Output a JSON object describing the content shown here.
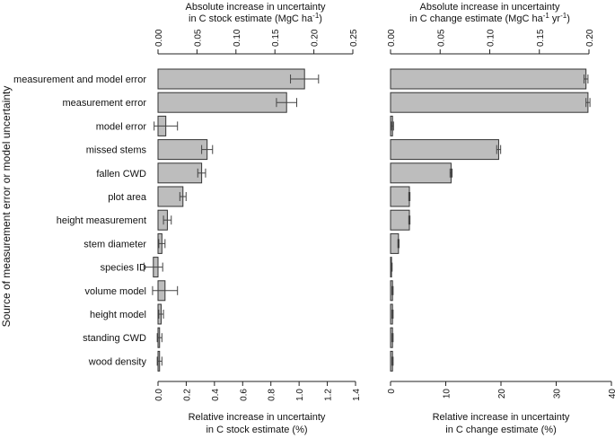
{
  "chart_data": {
    "type": "bar",
    "orientation": "horizontal",
    "ylabel": "Source of measurement error or model uncertainty",
    "categories": [
      "measurement and model error",
      "measurement error",
      "model error",
      "missed stems",
      "fallen CWD",
      "plot area",
      "height measurement",
      "stem diameter",
      "species ID",
      "volume model",
      "height model",
      "standing CWD",
      "wood density"
    ],
    "panels": [
      {
        "id": "stock",
        "top_title": [
          "Absolute increase in uncertainty",
          "in C stock estimate (MgC ha",
          "-1",
          ")"
        ],
        "top_ticks": [
          "0.00",
          "0.05",
          "0.10",
          "0.15",
          "0.20",
          "0.25"
        ],
        "top_tick_values": [
          0,
          0.05,
          0.1,
          0.15,
          0.2,
          0.25
        ],
        "top_lim": [
          0,
          0.25
        ],
        "bottom_title": [
          "Relative increase in uncertainty",
          "in C stock estimate (%)"
        ],
        "bottom_ticks": [
          "0.0",
          "0.2",
          "0.4",
          "0.6",
          "0.8",
          "1.0",
          "1.2",
          "1.4"
        ],
        "bottom_tick_values": [
          0,
          0.2,
          0.4,
          0.6,
          0.8,
          1.0,
          1.2,
          1.4
        ],
        "bottom_lim": [
          0,
          1.4
        ],
        "values": [
          0.188,
          0.165,
          0.01,
          0.063,
          0.056,
          0.032,
          0.012,
          0.005,
          -0.006,
          0.009,
          0.004,
          0.002,
          0.002
        ],
        "errors": [
          0.018,
          0.013,
          0.015,
          0.007,
          0.005,
          0.004,
          0.005,
          0.004,
          0.012,
          0.016,
          0.003,
          0.003,
          0.003
        ]
      },
      {
        "id": "change",
        "top_title": [
          "Absolute increase in uncertainty",
          "in C change estimate (MgC ha",
          "-1",
          " yr",
          "-1",
          ")"
        ],
        "top_ticks": [
          "0.00",
          "0.05",
          "0.10",
          "0.15",
          "0.20"
        ],
        "top_tick_values": [
          0,
          0.05,
          0.1,
          0.15,
          0.2
        ],
        "top_lim": [
          0,
          0.2
        ],
        "bottom_title": [
          "Relative increase in uncertainty",
          "in C change estimate (%)"
        ],
        "bottom_ticks": [
          "0",
          "10",
          "20",
          "30",
          "40"
        ],
        "bottom_tick_values": [
          0,
          10,
          20,
          30,
          40
        ],
        "bottom_lim": [
          0,
          40
        ],
        "values": [
          0.197,
          0.199,
          0.002,
          0.109,
          0.061,
          0.019,
          0.019,
          0.008,
          0.001,
          0.002,
          0.002,
          0.002,
          0.002
        ],
        "errors": [
          0.002,
          0.002,
          0.001,
          0.002,
          0.001,
          0.0006,
          0.0006,
          0.0006,
          0.0006,
          0.0006,
          0.0006,
          0.0006,
          0.0006
        ]
      }
    ]
  }
}
